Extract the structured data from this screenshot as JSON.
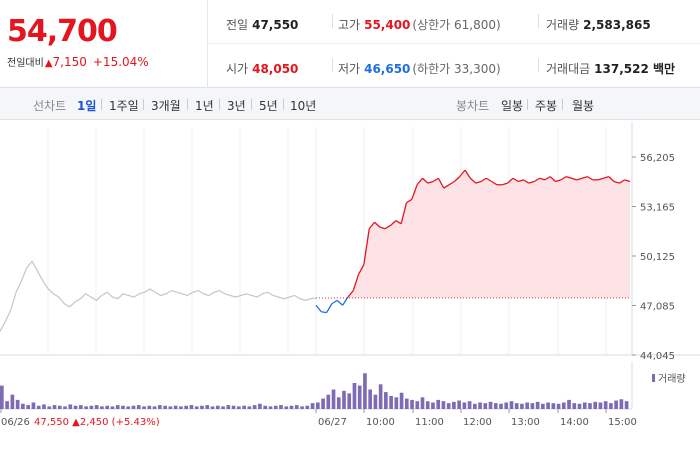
{
  "header": {
    "price": "54,700",
    "change_label": "전일대비",
    "change_arrow": "▲",
    "change_value": "7,150",
    "change_pct": "+15.04%",
    "prev_close_label": "전일",
    "prev_close": "47,550",
    "high_label": "고가",
    "high": "55,400",
    "upper_limit": "(상한가 61,800)",
    "volume_label": "거래량",
    "volume": "2,583,865",
    "open_label": "시가",
    "open": "48,050",
    "low_label": "저가",
    "low": "46,650",
    "lower_limit": "(하한가 33,300)",
    "turnover_label": "거래대금",
    "turnover": "137,522 백만"
  },
  "toolbar": {
    "line_chart_label": "선차트",
    "periods": [
      "1일",
      "1주일",
      "3개월",
      "1년",
      "3년",
      "5년",
      "10년"
    ],
    "candle_label": "봉차트",
    "candles": [
      "일봉",
      "주봉",
      "월봉"
    ]
  },
  "chart_data": {
    "type": "line",
    "y_ticks": [
      "56,205",
      "53,165",
      "50,125",
      "47,085",
      "44,045"
    ],
    "ylim": [
      44045,
      56205
    ],
    "x_labels": [
      "06/26",
      "06/27",
      "10:00",
      "11:00",
      "12:00",
      "13:00",
      "14:00",
      "15:00"
    ],
    "prev_day_series": {
      "name": "06/26",
      "close": 47550,
      "x_count": 60,
      "values": [
        45500,
        46100,
        46800,
        47900,
        48600,
        49400,
        49800,
        49200,
        48600,
        48100,
        47800,
        47600,
        47200,
        47000,
        47300,
        47500,
        47800,
        47600,
        47400,
        47700,
        47900,
        47600,
        47500,
        47800,
        47700,
        47600,
        47800,
        47900,
        48100,
        47900,
        47700,
        47800,
        48000,
        47900,
        47800,
        47700,
        47900,
        48000,
        47800,
        47700,
        47900,
        48000,
        47800,
        47700,
        47600,
        47700,
        47800,
        47700,
        47600,
        47800,
        47900,
        47700,
        47600,
        47500,
        47600,
        47700,
        47500,
        47400,
        47500,
        47550
      ]
    },
    "today_series": {
      "name": "06/27",
      "open": 48050,
      "x_count": 60,
      "values": [
        47100,
        46700,
        46650,
        47200,
        47400,
        47100,
        47600,
        48000,
        49000,
        49600,
        51800,
        52200,
        51900,
        51800,
        52000,
        52300,
        52100,
        53400,
        53600,
        54500,
        54900,
        54600,
        54700,
        54900,
        54300,
        54500,
        54700,
        55000,
        55400,
        54900,
        54600,
        54700,
        54900,
        54700,
        54500,
        54500,
        54600,
        54900,
        54700,
        54800,
        54600,
        54700,
        54900,
        54800,
        55000,
        54700,
        54800,
        55000,
        54900,
        54800,
        54900,
        55000,
        54800,
        54800,
        54900,
        55000,
        54700,
        54600,
        54800,
        54700
      ]
    },
    "prev_close_line": 47550,
    "volume_label": "거래량",
    "volume_day1": [
      36,
      12,
      22,
      14,
      8,
      6,
      10,
      5,
      7,
      4,
      6,
      5,
      4,
      7,
      5,
      6,
      4,
      5,
      6,
      4,
      5,
      4,
      6,
      5,
      4,
      5,
      6,
      4,
      5,
      4,
      6,
      5,
      4,
      5,
      4,
      5,
      6,
      4,
      5,
      6,
      4,
      5,
      4,
      6,
      5,
      4,
      5,
      4,
      6,
      8,
      5,
      4,
      5,
      6,
      4,
      5,
      6,
      4,
      5,
      9
    ],
    "volume_day2": [
      10,
      16,
      22,
      30,
      18,
      28,
      24,
      40,
      36,
      55,
      30,
      22,
      38,
      26,
      20,
      18,
      25,
      16,
      14,
      12,
      18,
      12,
      10,
      14,
      12,
      9,
      11,
      13,
      10,
      12,
      8,
      10,
      9,
      11,
      9,
      8,
      10,
      12,
      9,
      8,
      10,
      9,
      11,
      8,
      10,
      9,
      8,
      10,
      14,
      9,
      8,
      10,
      9,
      11,
      10,
      12,
      9,
      13,
      15,
      12
    ],
    "footer_date": "06/26",
    "footer_close": "47,550",
    "footer_arrow": "▲",
    "footer_change": "2,450",
    "footer_pct": "(+5.43%)",
    "colors": {
      "up": "#e4151f",
      "down": "#1b6fe4",
      "gray": "#c6c6c6",
      "fill": "#fde3e5",
      "volume": "#7d6bb5"
    }
  }
}
